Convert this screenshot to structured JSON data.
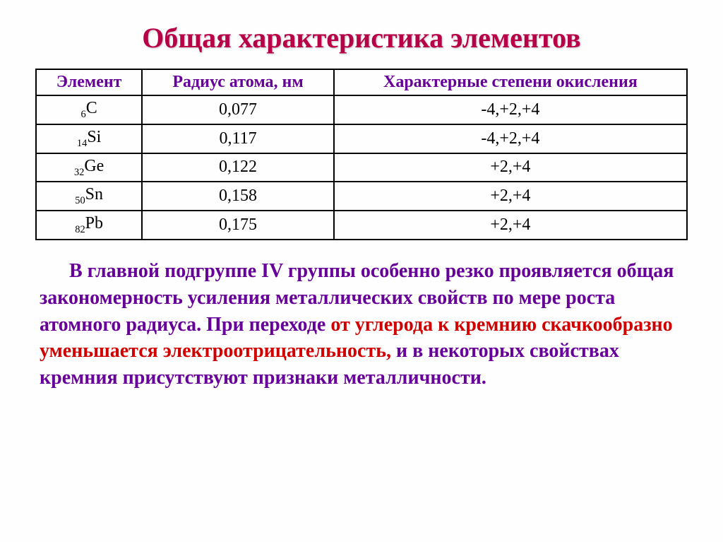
{
  "title": "Общая характеристика элементов",
  "table": {
    "headers": [
      "Элемент",
      "Радиус атома, нм",
      "Характерные степени окисления"
    ],
    "rows": [
      {
        "sub": "6",
        "sym": "C",
        "radius": "0,077",
        "ox": "-4,+2,+4"
      },
      {
        "sub": "14",
        "sym": "Si",
        "radius": "0,117",
        "ox": "-4,+2,+4"
      },
      {
        "sub": "32",
        "sym": "Ge",
        "radius": "0,122",
        "ox": "+2,+4"
      },
      {
        "sub": "50",
        "sym": "Sn",
        "radius": "0,158",
        "ox": "+2,+4"
      },
      {
        "sub": "82",
        "sym": "Pb",
        "radius": "0,175",
        "ox": "+2,+4"
      }
    ]
  },
  "paragraph": {
    "indent": "      ",
    "p1a": "В главной подгруппе IV  группы особенно резко проявляется общая закономерность усиления металлических свойств по мере роста атомного радиуса. При переходе ",
    "p1b": "от углерода к кремнию скачкообразно уменьшается электроотрицательность, ",
    "p1c": "и в некоторых свойствах кремния присутствуют признаки металличности."
  },
  "colors": {
    "title": "#b80048",
    "header": "#660099",
    "body": "#660099",
    "accent_red": "#d00000",
    "border": "#000000",
    "background": "#fefefe"
  },
  "fonts": {
    "title_pt": 40,
    "table_pt": 24,
    "body_pt": 28
  }
}
